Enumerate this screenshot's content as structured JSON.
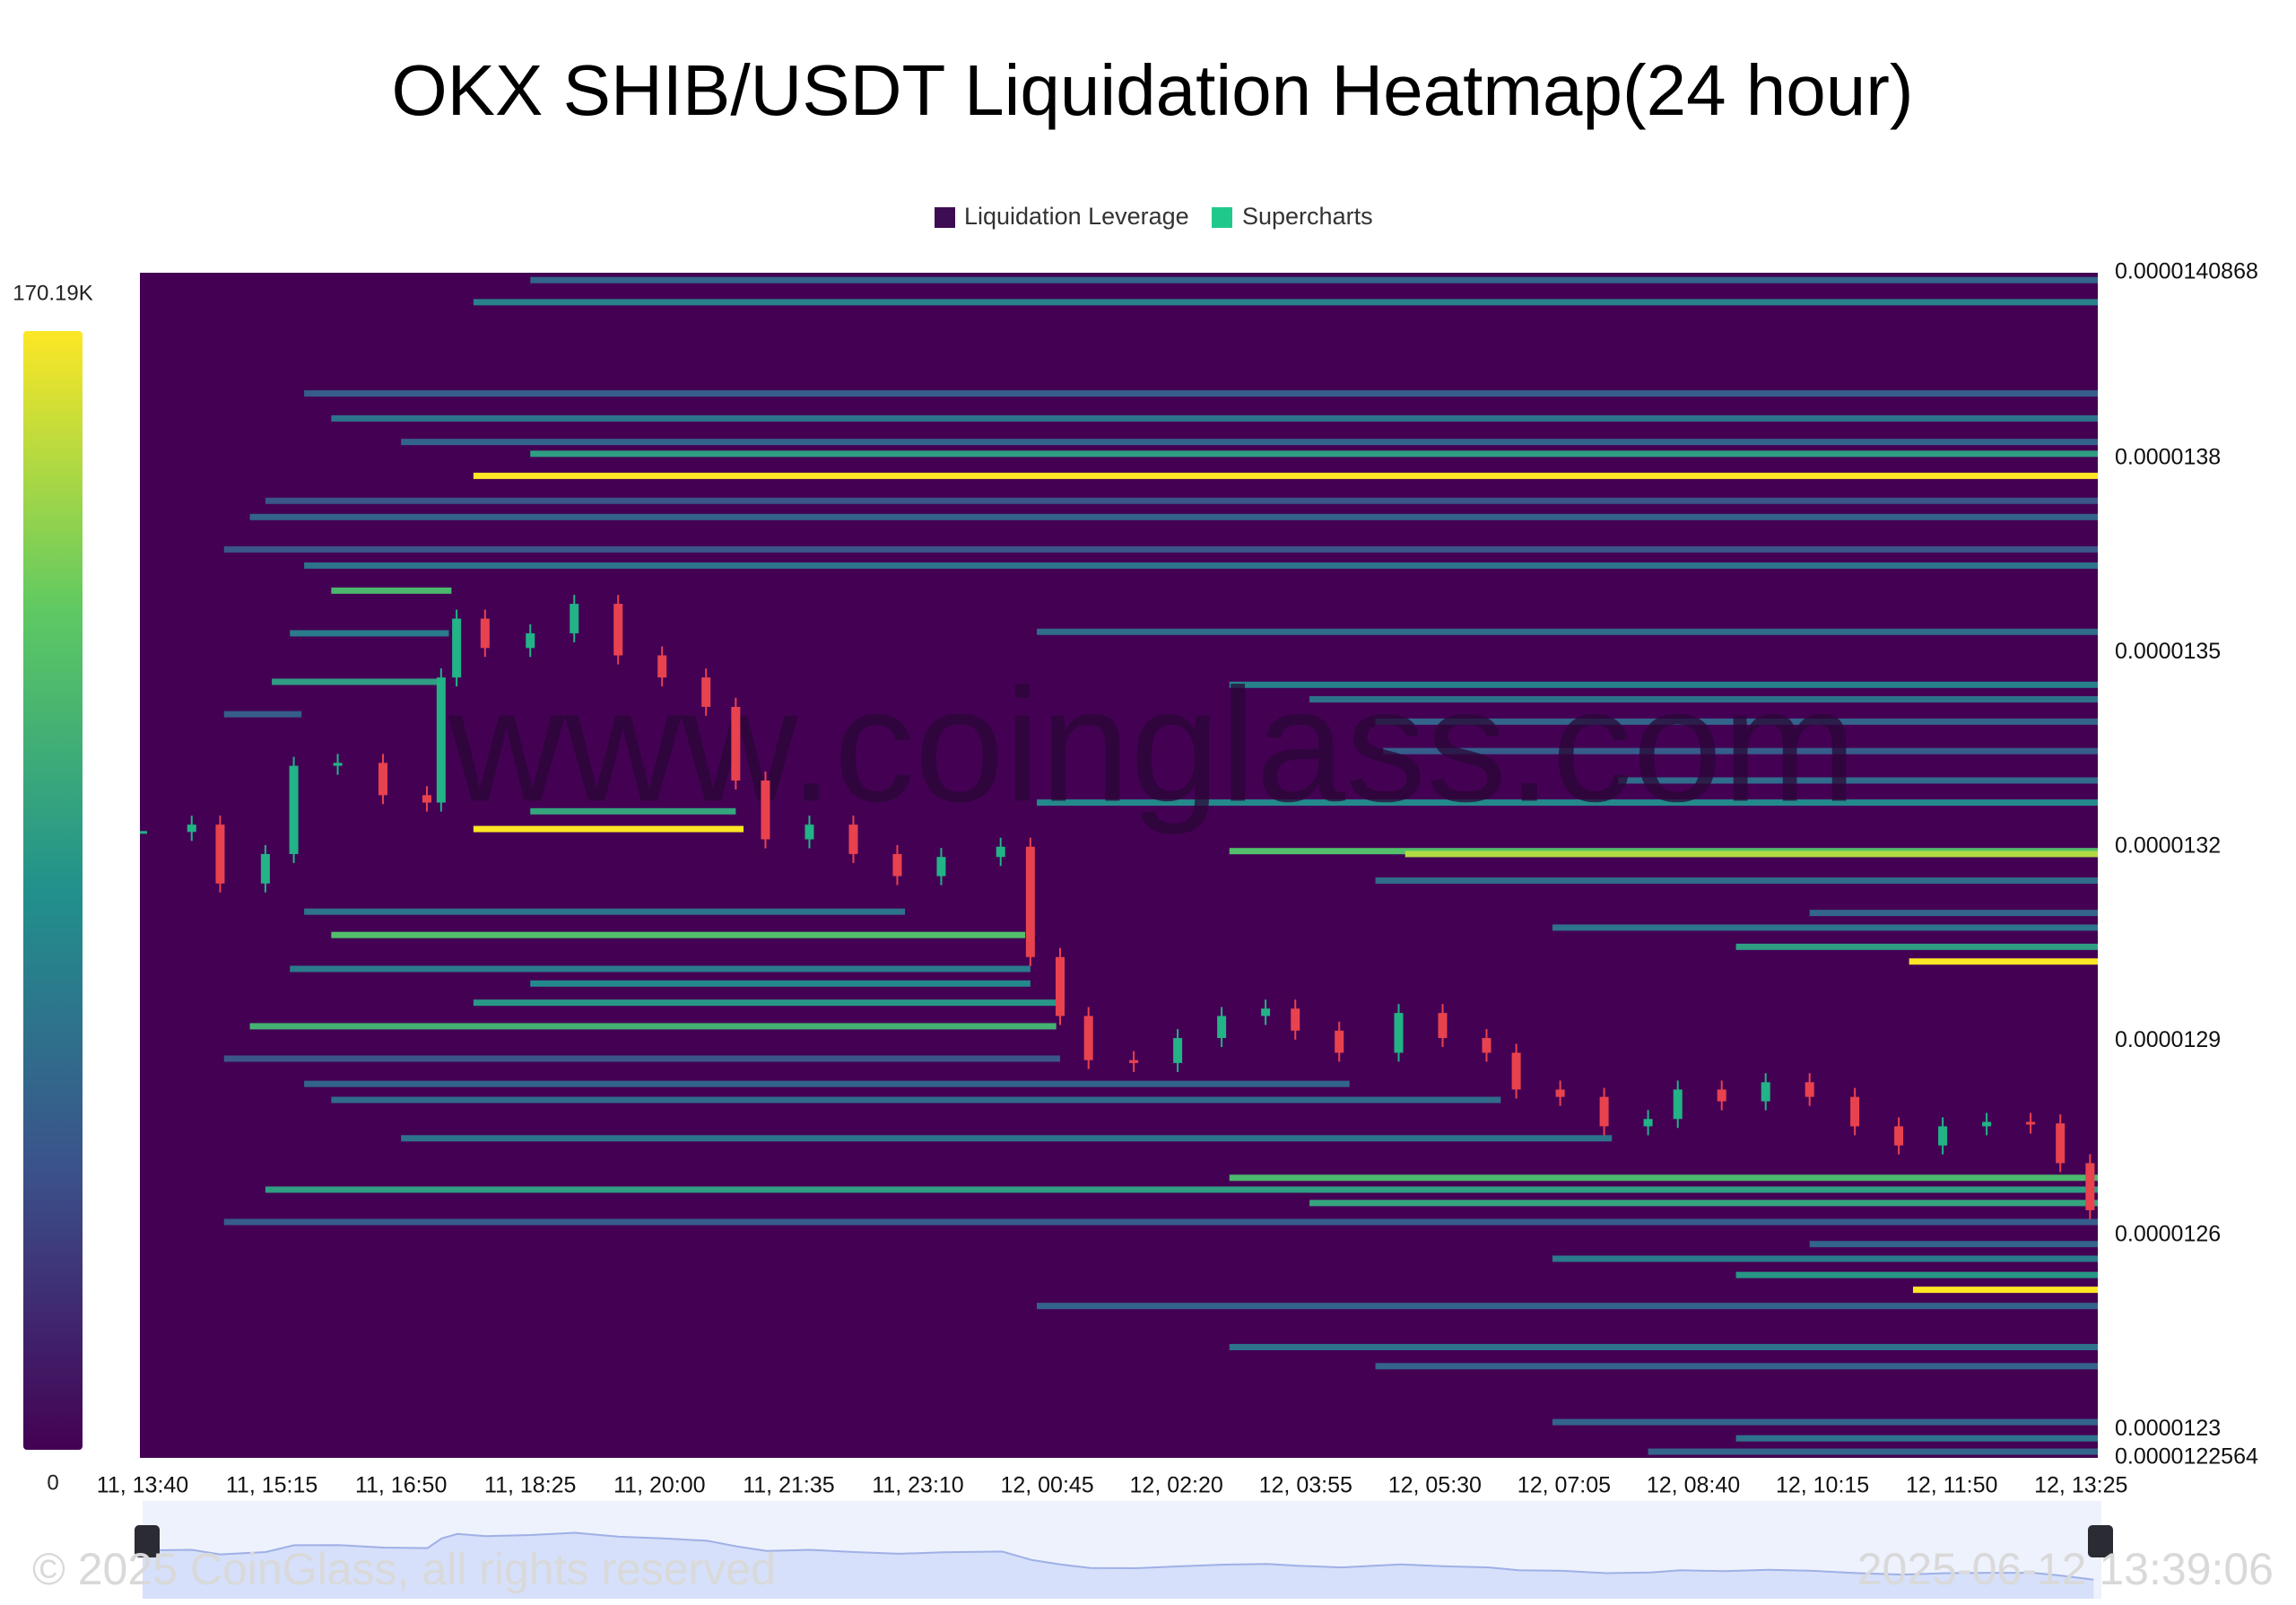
{
  "chart_data": {
    "type": "heatmap",
    "title": "OKX SHIB/USDT Liquidation Heatmap(24 hour)",
    "legend": [
      {
        "name": "Liquidation Leverage",
        "color": "#3d0c52"
      },
      {
        "name": "Supercharts",
        "color": "#20c98b"
      }
    ],
    "xlim": [
      0,
      15.13
    ],
    "xticks": [
      {
        "value": 0,
        "label": "11, 13:40"
      },
      {
        "value": 1,
        "label": "11, 15:15"
      },
      {
        "value": 2,
        "label": "11, 16:50"
      },
      {
        "value": 3,
        "label": "11, 18:25"
      },
      {
        "value": 4,
        "label": "11, 20:00"
      },
      {
        "value": 5,
        "label": "11, 21:35"
      },
      {
        "value": 6,
        "label": "11, 23:10"
      },
      {
        "value": 7,
        "label": "12, 00:45"
      },
      {
        "value": 8,
        "label": "12, 02:20"
      },
      {
        "value": 9,
        "label": "12, 03:55"
      },
      {
        "value": 10,
        "label": "12, 05:30"
      },
      {
        "value": 11,
        "label": "12, 07:05"
      },
      {
        "value": 12,
        "label": "12, 08:40"
      },
      {
        "value": 13,
        "label": "12, 10:15"
      },
      {
        "value": 14,
        "label": "12, 11:50"
      },
      {
        "value": 15,
        "label": "12, 13:25"
      }
    ],
    "ylim": [
      1.22564e-05,
      1.40868e-05
    ],
    "yticks": [
      {
        "value": 1.40868e-05,
        "label": "0.0000140868"
      },
      {
        "value": 1.38e-05,
        "label": "0.0000138"
      },
      {
        "value": 1.35e-05,
        "label": "0.0000135"
      },
      {
        "value": 1.32e-05,
        "label": "0.0000132"
      },
      {
        "value": 1.29e-05,
        "label": "0.0000129"
      },
      {
        "value": 1.26e-05,
        "label": "0.0000126"
      },
      {
        "value": 1.23e-05,
        "label": "0.0000123"
      },
      {
        "value": 1.22564e-05,
        "label": "0.0000122564"
      }
    ],
    "colorbar_lim": [
      0,
      170190
    ],
    "colorbar_ticks": [
      {
        "value": 0,
        "label": "0"
      },
      {
        "value": 170190,
        "label": "170.19K"
      }
    ],
    "background": "#440154",
    "bands": {
      "price": [
        1.40754e-05,
        1.40413e-05,
        1.39004e-05,
        1.38618e-05,
        1.38254e-05,
        1.38072e-05,
        1.37731e-05,
        1.37345e-05,
        1.37095e-05,
        1.36595e-05,
        1.36345e-05,
        1.35958e-05,
        1.35322e-05,
        1.35299e-05,
        1.3455e-05,
        1.34504e-05,
        1.3428e-05,
        1.34049e-05,
        1.33935e-05,
        1.3348e-05,
        1.33026e-05,
        1.32685e-05,
        1.3255e-05,
        1.32276e-05,
        1.31935e-05,
        1.3189e-05,
        1.3148e-05,
        1.31e-05,
        1.3098e-05,
        1.3064e-05,
        1.30754e-05,
        1.30457e-05,
        1.3023e-05,
        1.30116e-05,
        1.2989e-05,
        1.29594e-05,
        1.2923e-05,
        1.2873e-05,
        1.2834e-05,
        1.28093e-05,
        1.275e-05,
        1.2689e-05,
        1.26707e-05,
        1.265e-05,
        1.26207e-05,
        1.25866e-05,
        1.2564e-05,
        1.25389e-05,
        1.2516e-05,
        1.2491e-05,
        1.24275e-05,
        1.2398e-05,
        1.23116e-05,
        1.22866e-05,
        1.2266e-05
      ],
      "x_start": [
        3.0,
        2.56,
        1.25,
        1.46,
        2.0,
        3.0,
        2.56,
        0.95,
        0.83,
        0.63,
        1.25,
        1.46,
        6.92,
        1.14,
        1.0,
        8.41,
        9.03,
        0.63,
        9.54,
        9.6,
        11.42,
        6.92,
        3.0,
        2.56,
        8.41,
        9.77,
        9.54,
        1.25,
        12.9,
        1.46,
        10.91,
        12.33,
        13.67,
        1.14,
        3.0,
        2.56,
        0.83,
        0.63,
        1.25,
        1.46,
        2.0,
        8.41,
        0.95,
        9.03,
        0.63,
        12.9,
        10.91,
        12.33,
        13.7,
        6.92,
        8.41,
        9.54,
        10.91,
        12.33,
        11.65
      ],
      "x_end": [
        15.13,
        15.13,
        15.13,
        15.13,
        15.13,
        15.13,
        15.13,
        15.13,
        15.13,
        15.13,
        15.13,
        2.39,
        15.13,
        2.37,
        2.31,
        15.13,
        15.13,
        1.23,
        15.13,
        15.13,
        15.13,
        15.13,
        4.59,
        4.65,
        15.13,
        15.13,
        15.13,
        5.9,
        15.13,
        6.83,
        15.13,
        15.13,
        15.13,
        6.87,
        6.87,
        7.07,
        7.07,
        7.1,
        9.34,
        10.51,
        11.37,
        15.13,
        15.13,
        15.13,
        15.13,
        15.13,
        15.13,
        15.13,
        15.13,
        15.13,
        15.13,
        15.13,
        15.13,
        15.13,
        15.13
      ],
      "intensity": [
        55000,
        75000,
        50000,
        65000,
        55000,
        95000,
        170190,
        45000,
        55000,
        45000,
        65000,
        115000,
        60000,
        70000,
        95000,
        75000,
        65000,
        50000,
        55000,
        50000,
        60000,
        80000,
        100000,
        170190,
        120000,
        150000,
        60000,
        65000,
        55000,
        120000,
        65000,
        95000,
        170190,
        70000,
        80000,
        90000,
        110000,
        45000,
        55000,
        60000,
        65000,
        115000,
        95000,
        100000,
        50000,
        55000,
        70000,
        90000,
        170190,
        55000,
        65000,
        55000,
        55000,
        65000,
        55000
      ]
    },
    "candles": {
      "up_color": "#22b387",
      "down_color": "#e8424e",
      "x": [
        0.0,
        0.38,
        0.6,
        0.95,
        1.17,
        1.51,
        1.86,
        2.2,
        2.31,
        2.43,
        2.65,
        3.0,
        3.34,
        3.68,
        4.02,
        4.36,
        4.59,
        4.82,
        5.16,
        5.5,
        5.84,
        6.18,
        6.64,
        6.87,
        7.1,
        7.32,
        7.67,
        8.01,
        8.35,
        8.69,
        8.92,
        9.26,
        9.72,
        10.06,
        10.4,
        10.63,
        10.97,
        11.31,
        11.65,
        11.88,
        12.22,
        12.56,
        12.9,
        13.25,
        13.59,
        13.93,
        14.27,
        14.61,
        14.84,
        15.07
      ],
      "close": [
        1.32231e-05,
        1.32344e-05,
        1.31435e-05,
        1.3189e-05,
        1.33253e-05,
        1.33298e-05,
        1.32799e-05,
        1.32685e-05,
        1.34617e-05,
        1.35526e-05,
        1.35072e-05,
        1.35299e-05,
        1.35754e-05,
        1.34958e-05,
        1.34617e-05,
        1.34163e-05,
        1.33026e-05,
        1.32117e-05,
        1.32344e-05,
        1.3189e-05,
        1.31549e-05,
        1.31845e-05,
        1.32003e-05,
        1.30299e-05,
        1.29389e-05,
        1.28707e-05,
        1.28662e-05,
        1.29048e-05,
        1.29389e-05,
        1.29503e-05,
        1.29162e-05,
        1.28821e-05,
        1.29435e-05,
        1.29048e-05,
        1.28821e-05,
        1.28253e-05,
        1.28139e-05,
        1.27685e-05,
        1.27798e-05,
        1.28253e-05,
        1.28071e-05,
        1.28366e-05,
        1.28139e-05,
        1.27685e-05,
        1.27389e-05,
        1.27685e-05,
        1.27753e-05,
        1.2773e-05,
        1.27116e-05,
        1.26389e-05
      ]
    },
    "watermark": "www.coinglass.com",
    "footer": {
      "copyright": "© 2025 CoinGlass, all rights reserved",
      "timestamp": "2025-06-12 13:39:06"
    }
  }
}
